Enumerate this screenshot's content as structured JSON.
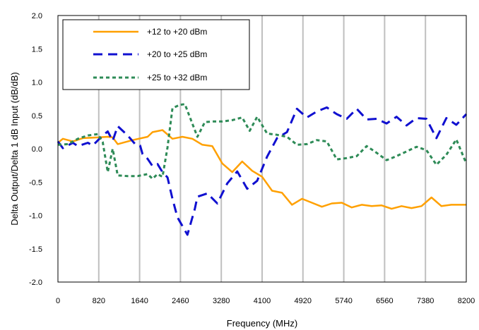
{
  "chart_data": {
    "type": "line",
    "title": "",
    "xlabel": "Frequency (MHz)",
    "ylabel": "Delta Output/Delta 1 dB Input (dB/dB)",
    "xlim": [
      0,
      8200
    ],
    "ylim": [
      -2.0,
      2.0
    ],
    "x_ticks": [
      0,
      820,
      1640,
      2460,
      3280,
      4100,
      4920,
      5740,
      6560,
      7380,
      8200
    ],
    "y_ticks": [
      "2.0",
      "1.5",
      "1.0",
      "0.5",
      "0.0",
      "-0.5",
      "-1.0",
      "-1.5",
      "-2.0"
    ],
    "grid": "vertical",
    "legend_position": "top-left",
    "series": [
      {
        "name": "+12 to +20 dBm",
        "color": "#FFA000",
        "dash": "solid",
        "points": [
          [
            0,
            0.09
          ],
          [
            100,
            0.15
          ],
          [
            300,
            0.11
          ],
          [
            500,
            0.16
          ],
          [
            800,
            0.17
          ],
          [
            1000,
            0.18
          ],
          [
            1100,
            0.17
          ],
          [
            1200,
            0.07
          ],
          [
            1500,
            0.13
          ],
          [
            1800,
            0.18
          ],
          [
            1900,
            0.25
          ],
          [
            2100,
            0.28
          ],
          [
            2300,
            0.15
          ],
          [
            2500,
            0.18
          ],
          [
            2700,
            0.15
          ],
          [
            2900,
            0.06
          ],
          [
            3100,
            0.04
          ],
          [
            3300,
            -0.22
          ],
          [
            3500,
            -0.35
          ],
          [
            3700,
            -0.19
          ],
          [
            3900,
            -0.33
          ],
          [
            4100,
            -0.42
          ],
          [
            4300,
            -0.63
          ],
          [
            4500,
            -0.66
          ],
          [
            4700,
            -0.84
          ],
          [
            4900,
            -0.75
          ],
          [
            5100,
            -0.81
          ],
          [
            5300,
            -0.87
          ],
          [
            5500,
            -0.82
          ],
          [
            5700,
            -0.81
          ],
          [
            5900,
            -0.88
          ],
          [
            6100,
            -0.84
          ],
          [
            6300,
            -0.86
          ],
          [
            6500,
            -0.85
          ],
          [
            6700,
            -0.9
          ],
          [
            6900,
            -0.86
          ],
          [
            7100,
            -0.89
          ],
          [
            7300,
            -0.86
          ],
          [
            7500,
            -0.73
          ],
          [
            7700,
            -0.86
          ],
          [
            7900,
            -0.84
          ],
          [
            8200,
            -0.84
          ]
        ]
      },
      {
        "name": "+20 to +25 dBm",
        "color": "#1010D0",
        "dash": "long-dash",
        "points": [
          [
            0,
            0.11
          ],
          [
            100,
            0.01
          ],
          [
            300,
            0.09
          ],
          [
            400,
            0.04
          ],
          [
            600,
            0.09
          ],
          [
            700,
            0.05
          ],
          [
            900,
            0.2
          ],
          [
            1000,
            0.26
          ],
          [
            1100,
            0.12
          ],
          [
            1200,
            0.34
          ],
          [
            1400,
            0.2
          ],
          [
            1550,
            0.07
          ],
          [
            1650,
            0.05
          ],
          [
            1700,
            -0.08
          ],
          [
            1800,
            -0.15
          ],
          [
            1900,
            -0.26
          ],
          [
            2000,
            -0.23
          ],
          [
            2100,
            -0.35
          ],
          [
            2200,
            -0.43
          ],
          [
            2300,
            -0.75
          ],
          [
            2400,
            -1.03
          ],
          [
            2600,
            -1.29
          ],
          [
            2750,
            -0.9
          ],
          [
            2800,
            -0.72
          ],
          [
            3000,
            -0.67
          ],
          [
            3200,
            -0.82
          ],
          [
            3400,
            -0.52
          ],
          [
            3600,
            -0.34
          ],
          [
            3800,
            -0.6
          ],
          [
            4000,
            -0.48
          ],
          [
            4200,
            -0.12
          ],
          [
            4400,
            0.16
          ],
          [
            4600,
            0.25
          ],
          [
            4800,
            0.6
          ],
          [
            5000,
            0.47
          ],
          [
            5200,
            0.56
          ],
          [
            5400,
            0.62
          ],
          [
            5600,
            0.52
          ],
          [
            5800,
            0.45
          ],
          [
            6000,
            0.6
          ],
          [
            6200,
            0.44
          ],
          [
            6400,
            0.45
          ],
          [
            6600,
            0.38
          ],
          [
            6800,
            0.48
          ],
          [
            7000,
            0.35
          ],
          [
            7200,
            0.46
          ],
          [
            7400,
            0.45
          ],
          [
            7600,
            0.16
          ],
          [
            7800,
            0.46
          ],
          [
            8000,
            0.36
          ],
          [
            8200,
            0.52
          ]
        ]
      },
      {
        "name": "+25 to +32 dBm",
        "color": "#2E8B57",
        "dash": "short-dash",
        "points": [
          [
            0,
            0.06
          ],
          [
            200,
            0.07
          ],
          [
            400,
            0.15
          ],
          [
            600,
            0.2
          ],
          [
            800,
            0.22
          ],
          [
            900,
            0.1
          ],
          [
            1000,
            -0.35
          ],
          [
            1100,
            0.0
          ],
          [
            1200,
            -0.4
          ],
          [
            1400,
            -0.41
          ],
          [
            1600,
            -0.41
          ],
          [
            1800,
            -0.38
          ],
          [
            1900,
            -0.45
          ],
          [
            2000,
            -0.38
          ],
          [
            2100,
            -0.42
          ],
          [
            2200,
            0.02
          ],
          [
            2300,
            0.61
          ],
          [
            2450,
            0.66
          ],
          [
            2550,
            0.67
          ],
          [
            2800,
            0.18
          ],
          [
            2950,
            0.4
          ],
          [
            3100,
            0.41
          ],
          [
            3300,
            0.41
          ],
          [
            3500,
            0.43
          ],
          [
            3700,
            0.47
          ],
          [
            3850,
            0.27
          ],
          [
            4000,
            0.48
          ],
          [
            4200,
            0.23
          ],
          [
            4400,
            0.21
          ],
          [
            4600,
            0.18
          ],
          [
            4800,
            0.06
          ],
          [
            5000,
            0.07
          ],
          [
            5200,
            0.13
          ],
          [
            5400,
            0.11
          ],
          [
            5600,
            -0.16
          ],
          [
            5800,
            -0.14
          ],
          [
            6000,
            -0.11
          ],
          [
            6200,
            0.04
          ],
          [
            6400,
            -0.06
          ],
          [
            6600,
            -0.17
          ],
          [
            6800,
            -0.11
          ],
          [
            7000,
            -0.04
          ],
          [
            7200,
            0.03
          ],
          [
            7400,
            -0.02
          ],
          [
            7600,
            -0.24
          ],
          [
            7800,
            -0.09
          ],
          [
            8000,
            0.14
          ],
          [
            8200,
            -0.22
          ]
        ]
      }
    ]
  }
}
